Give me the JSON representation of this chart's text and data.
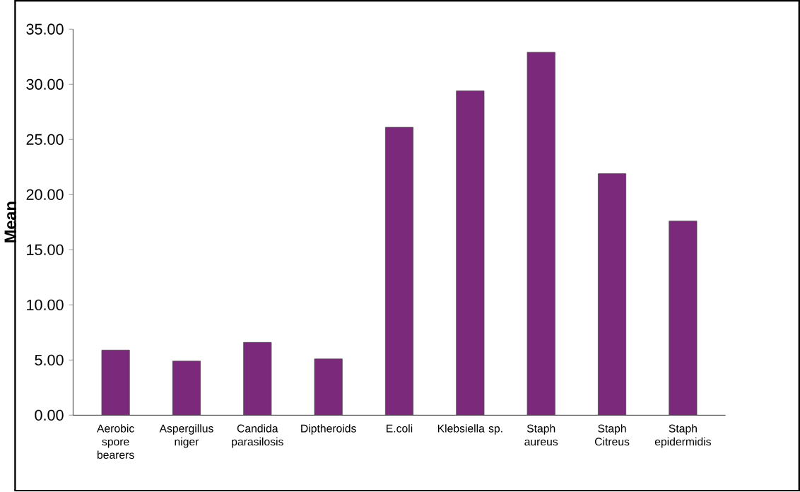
{
  "chart_data": {
    "type": "bar",
    "ylabel": "Mean",
    "categories": [
      "Aerobic spore bearers",
      "Aspergillus niger",
      "Candida parasilosis",
      "Diptheroids",
      "E.coli",
      "Klebsiella sp.",
      "Staph aureus",
      "Staph Citreus",
      "Staph epidermidis"
    ],
    "values": [
      5.9,
      4.9,
      6.6,
      5.1,
      26.1,
      29.4,
      32.9,
      21.9,
      17.6
    ],
    "color": "#7b2a7b",
    "ylim": [
      0,
      35
    ],
    "yticks": [
      {
        "value": 0,
        "label": "0.00"
      },
      {
        "value": 5,
        "label": "5.00"
      },
      {
        "value": 10,
        "label": "10.00"
      },
      {
        "value": 15,
        "label": "15.00"
      },
      {
        "value": 20,
        "label": "20.00"
      },
      {
        "value": 25,
        "label": "25.00"
      },
      {
        "value": 30,
        "label": "30.00"
      },
      {
        "value": 35,
        "label": "35.00"
      }
    ],
    "grid": false
  }
}
